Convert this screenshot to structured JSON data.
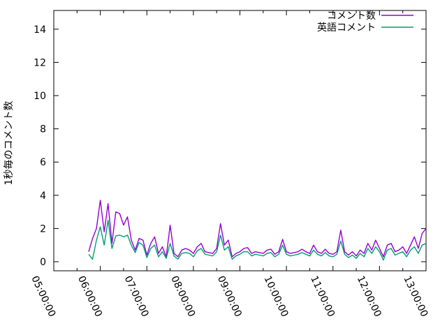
{
  "chart_data": {
    "type": "line",
    "title": "",
    "xlabel": "",
    "ylabel": "1秒毎のコメント数",
    "ylim": [
      0,
      15
    ],
    "yticks": [
      0,
      2,
      4,
      6,
      8,
      10,
      12,
      14
    ],
    "x_ticklabels": [
      "05:00:00",
      "06:00:00",
      "07:00:00",
      "08:00:00",
      "09:00:00",
      "10:00:00",
      "11:00:00",
      "12:00:00",
      "13:00:00"
    ],
    "x_minor_tick_interval": "30min",
    "grid": false,
    "legend_position": "top-right-inside",
    "axis_color": "#000000",
    "background_color": "#ffffff",
    "x": [
      "05:45",
      "05:50",
      "05:55",
      "06:00",
      "06:05",
      "06:10",
      "06:15",
      "06:20",
      "06:25",
      "06:30",
      "06:35",
      "06:40",
      "06:45",
      "06:50",
      "06:55",
      "07:00",
      "07:05",
      "07:10",
      "07:15",
      "07:20",
      "07:25",
      "07:30",
      "07:35",
      "07:40",
      "07:45",
      "07:50",
      "07:55",
      "08:00",
      "08:05",
      "08:10",
      "08:15",
      "08:20",
      "08:25",
      "08:30",
      "08:35",
      "08:40",
      "08:45",
      "08:50",
      "08:55",
      "09:00",
      "09:05",
      "09:10",
      "09:15",
      "09:20",
      "09:25",
      "09:30",
      "09:35",
      "09:40",
      "09:45",
      "09:50",
      "09:55",
      "10:00",
      "10:05",
      "10:10",
      "10:15",
      "10:20",
      "10:25",
      "10:30",
      "10:35",
      "10:40",
      "10:45",
      "10:50",
      "10:55",
      "11:00",
      "11:05",
      "11:10",
      "11:15",
      "11:20",
      "11:25",
      "11:30",
      "11:35",
      "11:40",
      "11:45",
      "11:50",
      "11:55",
      "12:00",
      "12:05",
      "12:10",
      "12:15",
      "12:20",
      "12:25",
      "12:30",
      "12:35",
      "12:40",
      "12:45",
      "12:50",
      "12:55",
      "13:00"
    ],
    "series": [
      {
        "name": "コメント数",
        "color": "#9400d3",
        "values": [
          0.6,
          1.4,
          2.0,
          3.7,
          1.8,
          3.5,
          1.1,
          3.0,
          2.9,
          2.2,
          2.7,
          1.3,
          0.7,
          1.4,
          1.3,
          0.4,
          1.1,
          1.5,
          0.5,
          0.9,
          0.3,
          2.2,
          0.5,
          0.3,
          0.7,
          0.8,
          0.7,
          0.5,
          0.9,
          1.1,
          0.6,
          0.55,
          0.5,
          0.8,
          2.3,
          1.0,
          1.3,
          0.3,
          0.5,
          0.6,
          0.8,
          0.85,
          0.5,
          0.6,
          0.55,
          0.5,
          0.7,
          0.75,
          0.45,
          0.6,
          1.35,
          0.6,
          0.5,
          0.55,
          0.6,
          0.75,
          0.6,
          0.5,
          1.0,
          0.6,
          0.5,
          0.75,
          0.5,
          0.45,
          0.6,
          1.9,
          0.6,
          0.4,
          0.6,
          0.35,
          0.7,
          0.5,
          1.1,
          0.7,
          1.3,
          0.8,
          0.3,
          1.0,
          1.1,
          0.6,
          0.7,
          0.9,
          0.5,
          1.0,
          1.5,
          0.8,
          1.7,
          2.0
        ]
      },
      {
        "name": "英語コメント",
        "color": "#009e73",
        "values": [
          0.45,
          0.15,
          1.3,
          2.1,
          1.0,
          2.5,
          0.8,
          1.55,
          1.6,
          1.5,
          1.6,
          1.0,
          0.55,
          1.15,
          1.0,
          0.25,
          0.8,
          1.0,
          0.3,
          0.6,
          0.2,
          1.1,
          0.35,
          0.15,
          0.5,
          0.55,
          0.5,
          0.3,
          0.65,
          0.8,
          0.45,
          0.4,
          0.35,
          0.6,
          1.6,
          0.7,
          0.9,
          0.15,
          0.35,
          0.45,
          0.6,
          0.6,
          0.35,
          0.45,
          0.4,
          0.35,
          0.5,
          0.55,
          0.3,
          0.45,
          1.0,
          0.45,
          0.35,
          0.4,
          0.45,
          0.55,
          0.45,
          0.35,
          0.7,
          0.45,
          0.35,
          0.55,
          0.35,
          0.3,
          0.45,
          1.25,
          0.45,
          0.25,
          0.4,
          0.2,
          0.5,
          0.3,
          0.8,
          0.5,
          0.9,
          0.6,
          0.1,
          0.7,
          0.8,
          0.4,
          0.5,
          0.6,
          0.3,
          0.7,
          0.9,
          0.5,
          1.0,
          1.1
        ]
      }
    ]
  }
}
